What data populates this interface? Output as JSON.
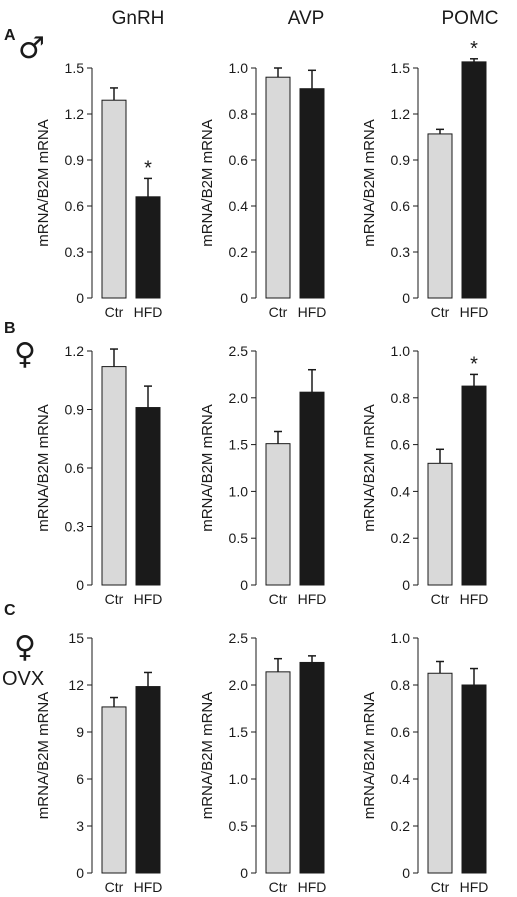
{
  "columns": [
    "GnRH",
    "AVP",
    "POMC"
  ],
  "rows": [
    {
      "letter": "A",
      "symbol": "♂",
      "extra": ""
    },
    {
      "letter": "B",
      "symbol": "♀",
      "extra": ""
    },
    {
      "letter": "C",
      "symbol": "♀",
      "extra": "OVX"
    }
  ],
  "colors": {
    "ctr": "#d9d9d9",
    "hfd": "#1a1a1a",
    "axis": "#1a1a1a"
  },
  "chart_data": [
    {
      "type": "bar",
      "row": 0,
      "col": 0,
      "categories": [
        "Ctr",
        "HFD"
      ],
      "values": [
        1.29,
        0.66
      ],
      "errors": [
        0.08,
        0.12
      ],
      "ylabel": "mRNA/B2M mRNA",
      "ylim": [
        0,
        1.5
      ],
      "yticks": [
        "0",
        "0.3",
        "0.6",
        "0.9",
        "1.2",
        "1.5"
      ],
      "significance": [
        "",
        "*"
      ]
    },
    {
      "type": "bar",
      "row": 0,
      "col": 1,
      "categories": [
        "Ctr",
        "HFD"
      ],
      "values": [
        0.96,
        0.91
      ],
      "errors": [
        0.04,
        0.08
      ],
      "ylabel": "mRNA/B2M mRNA",
      "ylim": [
        0,
        1.0
      ],
      "yticks": [
        "0",
        "0.2",
        "0.4",
        "0.6",
        "0.8",
        "1.0"
      ],
      "significance": [
        "",
        ""
      ]
    },
    {
      "type": "bar",
      "row": 0,
      "col": 2,
      "categories": [
        "Ctr",
        "HFD"
      ],
      "values": [
        1.07,
        1.54
      ],
      "errors": [
        0.03,
        0.02
      ],
      "ylabel": "mRNA/B2M mRNA",
      "ylim": [
        0,
        1.5
      ],
      "yticks": [
        "0",
        "0.3",
        "0.6",
        "0.9",
        "1.2",
        "1.5"
      ],
      "significance": [
        "",
        "*"
      ]
    },
    {
      "type": "bar",
      "row": 1,
      "col": 0,
      "categories": [
        "Ctr",
        "HFD"
      ],
      "values": [
        1.12,
        0.91
      ],
      "errors": [
        0.09,
        0.11
      ],
      "ylabel": "mRNA/B2M mRNA",
      "ylim": [
        0,
        1.2
      ],
      "yticks": [
        "0",
        "0.3",
        "0.6",
        "0.9",
        "1.2"
      ],
      "significance": [
        "",
        ""
      ]
    },
    {
      "type": "bar",
      "row": 1,
      "col": 1,
      "categories": [
        "Ctr",
        "HFD"
      ],
      "values": [
        1.51,
        2.06
      ],
      "errors": [
        0.13,
        0.24
      ],
      "ylabel": "mRNA/B2M mRNA",
      "ylim": [
        0,
        2.5
      ],
      "yticks": [
        "0",
        "0.5",
        "1.0",
        "1.5",
        "2.0",
        "2.5"
      ],
      "significance": [
        "",
        ""
      ]
    },
    {
      "type": "bar",
      "row": 1,
      "col": 2,
      "categories": [
        "Ctr",
        "HFD"
      ],
      "values": [
        0.52,
        0.85
      ],
      "errors": [
        0.06,
        0.05
      ],
      "ylabel": "mRNA/B2M mRNA",
      "ylim": [
        0,
        1.0
      ],
      "yticks": [
        "0",
        "0.2",
        "0.4",
        "0.6",
        "0.8",
        "1.0"
      ],
      "significance": [
        "",
        "*"
      ]
    },
    {
      "type": "bar",
      "row": 2,
      "col": 0,
      "categories": [
        "Ctr",
        "HFD"
      ],
      "values": [
        10.6,
        11.9
      ],
      "errors": [
        0.6,
        0.9
      ],
      "ylabel": "mRNA/B2M mRNA",
      "ylim": [
        0,
        15
      ],
      "yticks": [
        "0",
        "3",
        "6",
        "9",
        "12",
        "15"
      ],
      "significance": [
        "",
        ""
      ]
    },
    {
      "type": "bar",
      "row": 2,
      "col": 1,
      "categories": [
        "Ctr",
        "HFD"
      ],
      "values": [
        2.14,
        2.24
      ],
      "errors": [
        0.14,
        0.07
      ],
      "ylabel": "mRNA/B2M mRNA",
      "ylim": [
        0,
        2.5
      ],
      "yticks": [
        "0",
        "0.5",
        "1.0",
        "1.5",
        "2.0",
        "2.5"
      ],
      "significance": [
        "",
        ""
      ]
    },
    {
      "type": "bar",
      "row": 2,
      "col": 2,
      "categories": [
        "Ctr",
        "HFD"
      ],
      "values": [
        0.85,
        0.8
      ],
      "errors": [
        0.05,
        0.07
      ],
      "ylabel": "mRNA/B2M mRNA",
      "ylim": [
        0,
        1.0
      ],
      "yticks": [
        "0",
        "0.2",
        "0.4",
        "0.6",
        "0.8",
        "1.0"
      ],
      "significance": [
        "",
        ""
      ]
    }
  ]
}
